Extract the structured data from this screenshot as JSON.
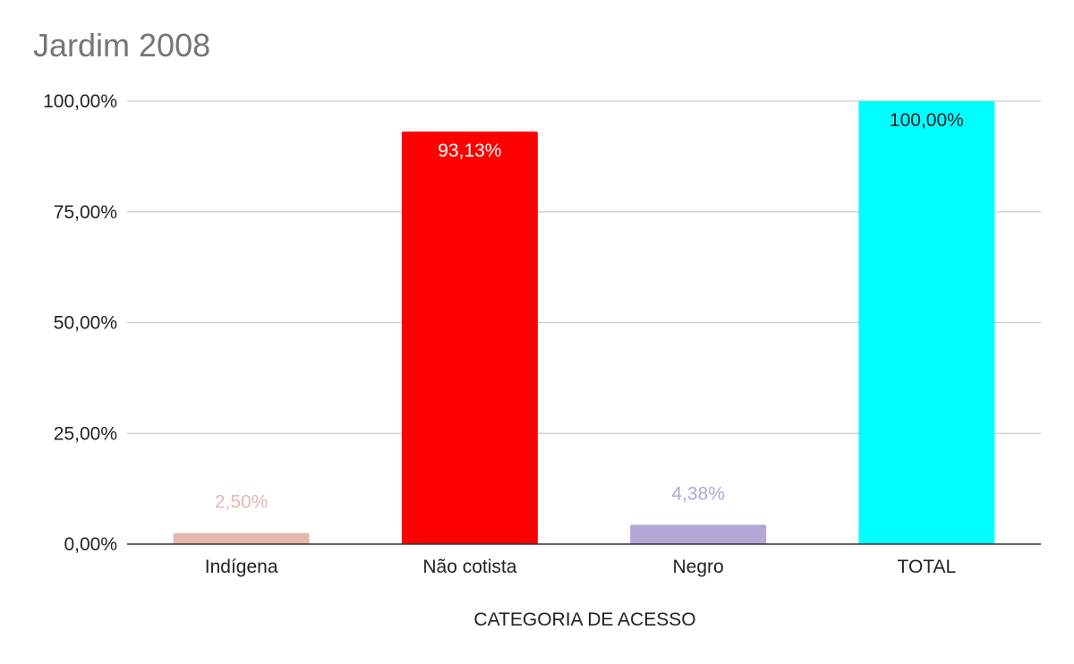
{
  "chart_data": {
    "type": "bar",
    "title": "Jardim 2008",
    "xlabel": "CATEGORIA DE ACESSO",
    "ylabel": "",
    "ylim": [
      0,
      100
    ],
    "yticks": [
      0,
      25,
      50,
      75,
      100
    ],
    "ytick_labels": [
      "0,00%",
      "25,00%",
      "50,00%",
      "75,00%",
      "100,00%"
    ],
    "grid": true,
    "legend": "none",
    "categories": [
      "Indígena",
      "Não cotista",
      "Negro",
      "TOTAL"
    ],
    "values": [
      2.5,
      93.13,
      4.38,
      100.0
    ],
    "data_labels": [
      "2,50%",
      "93,13%",
      "4,38%",
      "100,00%"
    ],
    "bar_colors": [
      "#e6b8af",
      "#ff0000",
      "#b4a7d6",
      "#00ffff"
    ],
    "label_colors": [
      "#e6b8af",
      "#ffffff",
      "#b4a7d6",
      "#222222"
    ],
    "label_positions": [
      "above",
      "inside",
      "above",
      "inside"
    ]
  }
}
